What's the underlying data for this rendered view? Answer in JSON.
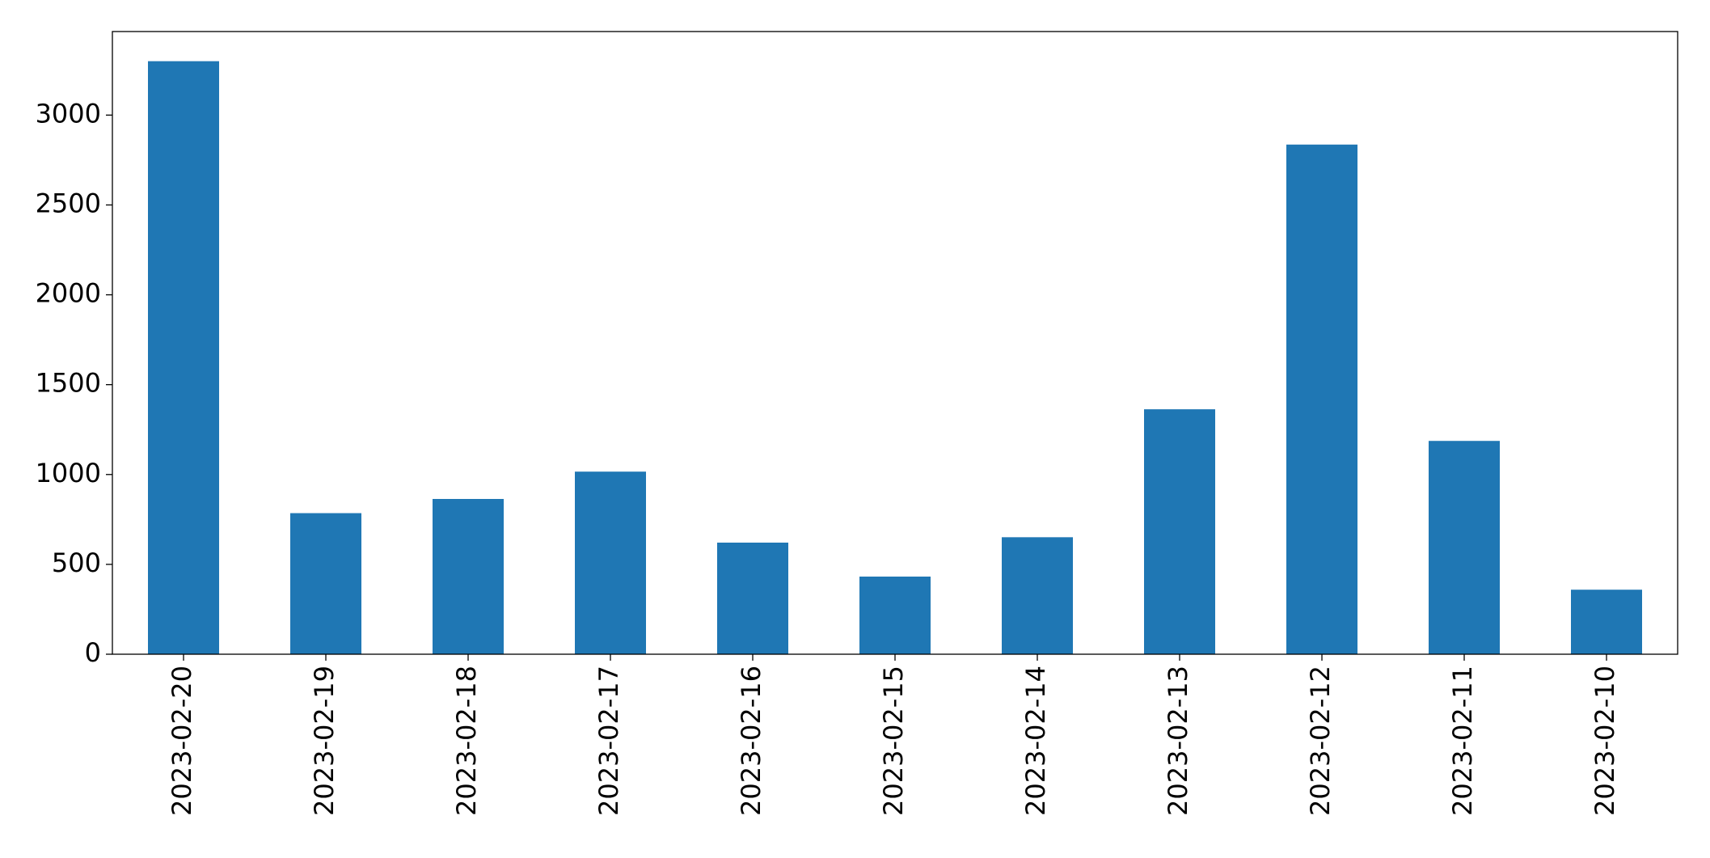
{
  "chart_data": {
    "type": "bar",
    "categories": [
      "2023-02-20",
      "2023-02-19",
      "2023-02-18",
      "2023-02-17",
      "2023-02-16",
      "2023-02-15",
      "2023-02-14",
      "2023-02-13",
      "2023-02-12",
      "2023-02-11",
      "2023-02-10"
    ],
    "values": [
      3300,
      785,
      864,
      1016,
      621,
      432,
      651,
      1363,
      2836,
      1187,
      359
    ],
    "color": "#1f77b4",
    "ylim": [
      0,
      3465
    ],
    "yticks": [
      0,
      500,
      1000,
      1500,
      2000,
      2500,
      3000
    ],
    "grid": false
  }
}
